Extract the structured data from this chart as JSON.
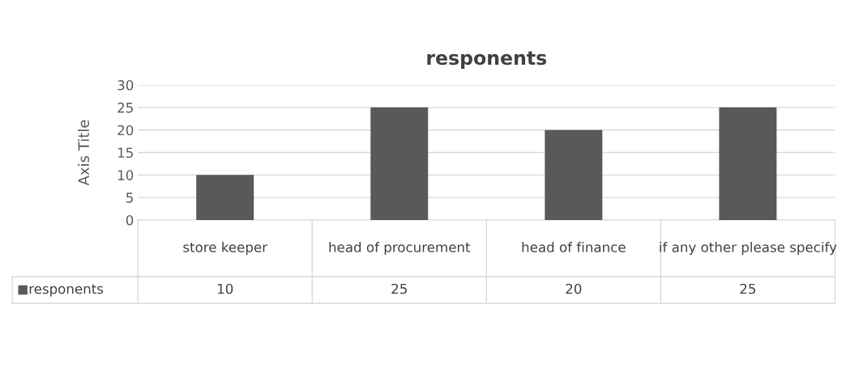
{
  "chart_data": {
    "type": "bar",
    "title": "responents",
    "ylabel": "Axis Title",
    "categories": [
      "store keeper",
      "head of procurement",
      "head of finance",
      "if any other please specify"
    ],
    "series": [
      {
        "name": "responents",
        "color": "#595959",
        "values": [
          10,
          25,
          20,
          25
        ]
      }
    ],
    "ylim": [
      0,
      30
    ],
    "yticks": [
      0,
      5,
      10,
      15,
      20,
      25,
      30
    ],
    "grid": "y",
    "data_labels": true,
    "legend": "bottom"
  }
}
